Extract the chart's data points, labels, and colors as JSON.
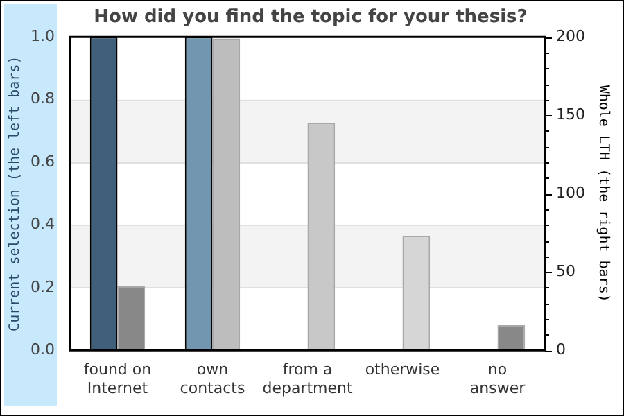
{
  "chart_data": {
    "type": "bar",
    "title": "How did you find the topic for your thesis?",
    "ylabel": "Current selection (the left bars)",
    "y2label": "Whole LTH (the right bars)",
    "categories": [
      "found on\nInternet",
      "own\ncontacts",
      "from a\ndepartment",
      "otherwise",
      "no\nanswer"
    ],
    "series": [
      {
        "colors": [
          "#3f5f7a",
          "#7396b0",
          "#3f5f7a",
          "#3f5f7a",
          "#3f5f7a"
        ],
        "values": [
          1,
          1,
          0,
          0,
          0
        ]
      },
      {
        "axis": "y2",
        "colors": [
          "#888888",
          "#bdbdbd",
          "#c8c8c8",
          "#d6d6d6",
          "#888888"
        ],
        "values": [
          41,
          199,
          145,
          73,
          16
        ]
      }
    ],
    "ylim": [
      0,
      1
    ],
    "yticks": [
      {
        "value": 0,
        "label": "0.0"
      },
      {
        "value": 0.2,
        "label": "0.2"
      },
      {
        "value": 0.4,
        "label": "0.4"
      },
      {
        "value": 0.6,
        "label": "0.6"
      },
      {
        "value": 0.8,
        "label": "0.8"
      },
      {
        "value": 1,
        "label": "1.0"
      }
    ],
    "y2lim": [
      0,
      200
    ],
    "y2ticks": [
      0,
      {
        "value": 10,
        "label": null
      },
      {
        "value": 20,
        "label": null
      },
      {
        "value": 30,
        "label": null
      },
      {
        "value": 40,
        "label": null
      },
      50,
      {
        "value": 60,
        "label": null
      },
      {
        "value": 70,
        "label": null
      },
      {
        "value": 80,
        "label": null
      },
      {
        "value": 90,
        "label": null
      },
      100,
      {
        "value": 110,
        "label": null
      },
      {
        "value": 120,
        "label": null
      },
      {
        "value": 130,
        "label": null
      },
      {
        "value": 140,
        "label": null
      },
      150,
      {
        "value": 160,
        "label": null
      },
      {
        "value": 170,
        "label": null
      },
      {
        "value": 180,
        "label": null
      },
      {
        "value": 190,
        "label": null
      },
      200
    ],
    "grid": "y",
    "legend": false
  }
}
